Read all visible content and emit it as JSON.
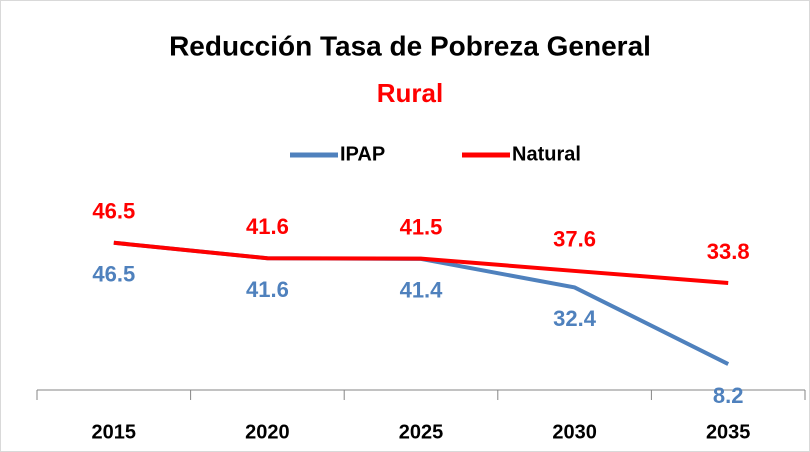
{
  "chart_data": {
    "type": "line",
    "title": "Reducción Tasa de Pobreza General",
    "subtitle": "Rural",
    "categories": [
      "2015",
      "2020",
      "2025",
      "2030",
      "2035"
    ],
    "series": [
      {
        "name": "IPAP",
        "color": "#4f81bd",
        "values": [
          46.5,
          41.6,
          41.4,
          32.4,
          8.2
        ]
      },
      {
        "name": "Natural",
        "color": "#ff0000",
        "values": [
          46.5,
          41.6,
          41.5,
          37.6,
          33.8
        ]
      }
    ],
    "ylim": [
      0,
      60
    ],
    "legend": "top"
  }
}
